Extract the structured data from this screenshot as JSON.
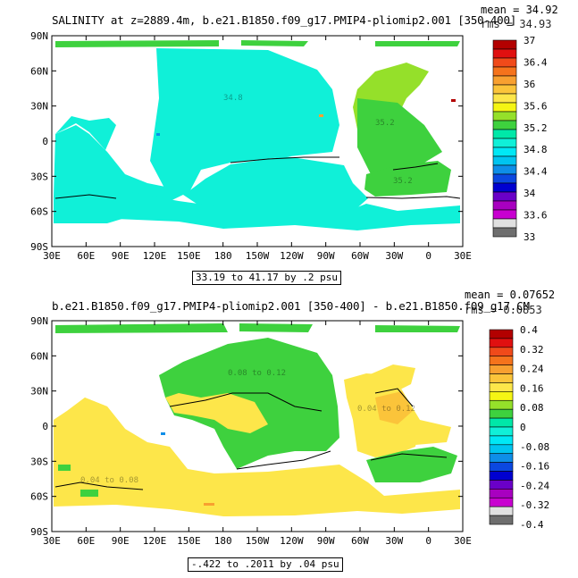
{
  "chart_data": [
    {
      "type": "heatmap",
      "title": "SALINITY at z=2889.4m, b.e21.B1850.f09_g17.PMIP4-pliomip2.001 [350-400]",
      "stats": {
        "mean_label": "mean = 34.92",
        "rms_label": "rms = 34.93"
      },
      "range_label": "33.19 to 41.17 by .2 psu",
      "x_tick_labels": [
        "30E",
        "60E",
        "90E",
        "120E",
        "150E",
        "180",
        "150W",
        "120W",
        "90W",
        "60W",
        "30W",
        "0",
        "30E"
      ],
      "y_tick_labels": [
        "90N",
        "60N",
        "30N",
        "0",
        "30S",
        "60S",
        "90S"
      ],
      "colorbar": {
        "labels": [
          "37",
          "36.4",
          "36",
          "35.6",
          "35.2",
          "34.8",
          "34.4",
          "34",
          "33.6",
          "33"
        ],
        "colors": [
          "#b30000",
          "#e01010",
          "#f04a1a",
          "#f5731c",
          "#f8a030",
          "#fbc43a",
          "#fde64a",
          "#f5f514",
          "#95e02a",
          "#3ed13e",
          "#00e8a8",
          "#10f0d8",
          "#00e8f5",
          "#00c4f0",
          "#0e8ee8",
          "#0b48e0",
          "#0000d0",
          "#6a00c8",
          "#a800c0",
          "#c800d0",
          "#e0e0e0",
          "#6e6e6e"
        ]
      },
      "regions": {
        "pacific_and_indian": "34.8",
        "north_atlantic": "35.2",
        "south_atlantic": "35.2"
      }
    },
    {
      "type": "heatmap",
      "title": "b.e21.B1850.f09_g17.PMIP4-pliomip2.001 [350-400] - b.e21.B1850.f09_g17.CM",
      "stats": {
        "mean_label": "mean = 0.07652",
        "rms_label": "rms = 0.0853"
      },
      "range_label": "-.422 to .2011 by .04 psu",
      "x_tick_labels": [
        "30E",
        "60E",
        "90E",
        "120E",
        "150E",
        "180",
        "150W",
        "120W",
        "90W",
        "60W",
        "30W",
        "0",
        "30E"
      ],
      "y_tick_labels": [
        "90N",
        "60N",
        "30N",
        "0",
        "30S",
        "60S",
        "90S"
      ],
      "colorbar": {
        "labels": [
          "0.4",
          "0.32",
          "0.24",
          "0.16",
          "0.08",
          "0",
          "-0.08",
          "-0.16",
          "-0.24",
          "-0.32",
          "-0.4"
        ],
        "colors": [
          "#b30000",
          "#e01010",
          "#f04a1a",
          "#f5731c",
          "#f8a030",
          "#fbc43a",
          "#fde64a",
          "#f5f514",
          "#95e02a",
          "#3ed13e",
          "#00e8a8",
          "#10f0d8",
          "#00e8f5",
          "#00c4f0",
          "#0e8ee8",
          "#0b48e0",
          "#0000d0",
          "#6a00c8",
          "#a800c0",
          "#c800d0",
          "#e0e0e0",
          "#6e6e6e"
        ]
      },
      "regions": {
        "pacific_and_indian": "0.04 to 0.08",
        "north_pacific": "0.08 to 0.12",
        "atlantic": "0.04 to 0.12"
      }
    }
  ]
}
